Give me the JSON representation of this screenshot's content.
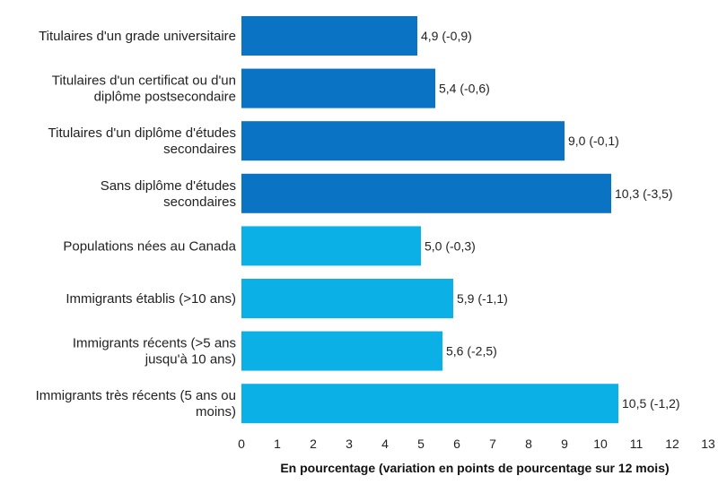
{
  "chart_data": {
    "type": "bar",
    "orientation": "horizontal",
    "categories": [
      "Titulaires d'un grade universitaire",
      "Titulaires d'un certificat ou d'un diplôme postsecondaire",
      "Titulaires d'un diplôme d'études secondaires",
      "Sans diplôme d'études secondaires",
      "Populations nées au Canada",
      "Immigrants établis (>10 ans)",
      "Immigrants récents (>5 ans jusqu'à 10 ans)",
      "Immigrants très récents (5 ans ou moins)"
    ],
    "category_lines": [
      [
        "Titulaires d'un grade universitaire"
      ],
      [
        "Titulaires d'un certificat ou d'un",
        "diplôme postsecondaire"
      ],
      [
        "Titulaires d'un diplôme d'études",
        "secondaires"
      ],
      [
        "Sans diplôme d'études",
        "secondaires"
      ],
      [
        "Populations nées au Canada"
      ],
      [
        "Immigrants établis (>10 ans)"
      ],
      [
        "Immigrants récents (>5 ans",
        "jusqu'à 10 ans)"
      ],
      [
        "Immigrants très récents (5 ans ou",
        "moins)"
      ]
    ],
    "values": [
      4.9,
      5.4,
      9.0,
      10.3,
      5.0,
      5.9,
      5.6,
      10.5
    ],
    "changes": [
      -0.9,
      -0.6,
      -0.1,
      -3.5,
      -0.3,
      -1.1,
      -2.5,
      -1.2
    ],
    "data_labels": [
      "4,9 (-0,9)",
      "5,4 (-0,6)",
      "9,0 (-0,1)",
      "10,3 (-3,5)",
      "5,0 (-0,3)",
      "5,9 (-1,1)",
      "5,6 (-2,5)",
      "10,5 (-1,2)"
    ],
    "bar_colors": [
      "#0a73c4",
      "#0a73c4",
      "#0a73c4",
      "#0a73c4",
      "#0bb0e6",
      "#0bb0e6",
      "#0bb0e6",
      "#0bb0e6"
    ],
    "xlabel": "En pourcentage (variation en points de pourcentage sur 12 mois)",
    "xlim": [
      0,
      13
    ],
    "xticks": [
      0,
      1,
      2,
      3,
      4,
      5,
      6,
      7,
      8,
      9,
      10,
      11,
      12,
      13
    ],
    "grid": false
  }
}
